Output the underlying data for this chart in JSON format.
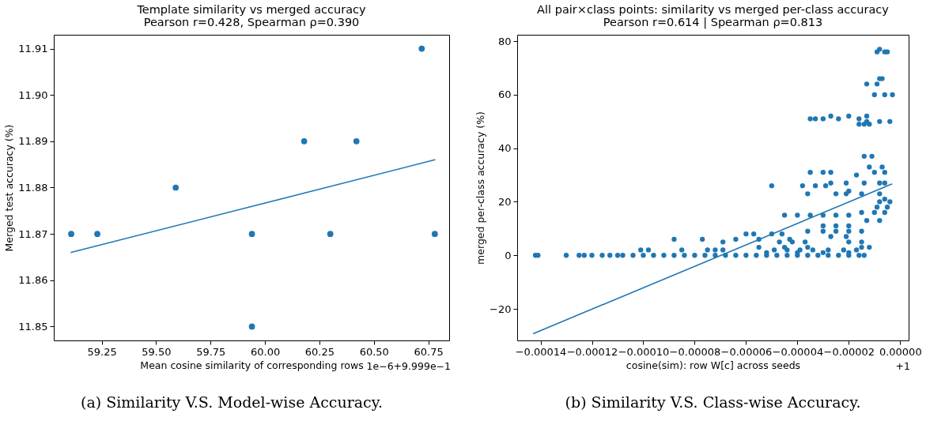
{
  "chart_data": [
    {
      "type": "scatter",
      "title": "Template similarity vs merged accuracy",
      "subtitle": "Pearson r=0.428, Spearman ρ=0.390",
      "xlabel": "Mean cosine similarity of corresponding rows",
      "ylabel": "Merged test accuracy (%)",
      "annotations": [
        "1e−6+9.999e−1",
        "(a) Similarity V.S. Model-wise Accuracy."
      ],
      "xlim": [
        59.03,
        60.846
      ],
      "ylim": [
        11.847,
        11.913
      ],
      "xticks": [
        59.25,
        {
          "value": 59.5,
          "label": "59.50"
        },
        59.75,
        {
          "value": 60,
          "label": "60.00"
        },
        60.25,
        {
          "value": 60.5,
          "label": "60.50"
        },
        60.75
      ],
      "yticks": [
        11.85,
        11.86,
        11.87,
        11.88,
        11.89,
        {
          "value": 11.9,
          "label": "11.90"
        },
        11.91
      ],
      "grid": false,
      "series": [
        {
          "type": "scatter",
          "marker": "circle",
          "color": "#1f77b4",
          "x": [
            59.11,
            59.23,
            59.59,
            59.94,
            59.94,
            60.18,
            60.3,
            60.42,
            60.72,
            60.78
          ],
          "values": [
            11.87,
            11.87,
            11.88,
            11.87,
            11.85,
            11.89,
            11.87,
            11.89,
            11.91,
            11.87
          ]
        },
        {
          "type": "line",
          "color": "#1f77b4",
          "x": [
            59.11,
            60.78
          ],
          "values": [
            11.866,
            11.886
          ]
        }
      ]
    },
    {
      "type": "scatter",
      "title": "All pair×class points: similarity vs merged per-class accuracy",
      "subtitle": "Pearson r=0.614 | Spearman ρ=0.813",
      "xlabel": "cosine(sim): row W[c] across seeds",
      "ylabel": "merged per-class accuracy (%)",
      "annotations": [
        "+1",
        "(b) Similarity V.S. Class-wise Accuracy."
      ],
      "xlim": [
        -0.0001491,
        3.3e-06
      ],
      "ylim": [
        -31.8,
        82.4
      ],
      "xticks": [
        {
          "value": -0.00014,
          "label": "−0.00014"
        },
        {
          "value": -0.00012,
          "label": "−0.00012"
        },
        {
          "value": -0.0001,
          "label": "−0.00010"
        },
        {
          "value": -8e-05,
          "label": "−0.00008"
        },
        {
          "value": -6e-05,
          "label": "−0.00006"
        },
        {
          "value": -4e-05,
          "label": "−0.00004"
        },
        {
          "value": -2e-05,
          "label": "−0.00002"
        },
        {
          "value": 0,
          "label": "0.00000"
        }
      ],
      "yticks": [
        {
          "value": -20,
          "label": "−20"
        },
        0,
        20,
        40,
        60,
        80
      ],
      "grid": false,
      "series": [
        {
          "type": "scatter",
          "marker": "circle",
          "color": "#1f77b4",
          "x": [
            -0.000142,
            -0.000141,
            -0.00013,
            -0.000125,
            -0.000123,
            -0.00012,
            -0.000116,
            -0.000113,
            -0.00011,
            -0.000108,
            -0.000104,
            -0.0001,
            -9.6e-05,
            -9.2e-05,
            -8.8e-05,
            -8.4e-05,
            -8e-05,
            -7.6e-05,
            -7.2e-05,
            -6.8e-05,
            -6.4e-05,
            -6e-05,
            -5.6e-05,
            -5.2e-05,
            -4.8e-05,
            -4.4e-05,
            -4e-05,
            -3.6e-05,
            -3.2e-05,
            -2.8e-05,
            -2.4e-05,
            -2e-05,
            -1.6e-05,
            -1.4e-05,
            -0.000101,
            -9.8e-05,
            -8.5e-05,
            -7.5e-05,
            -7.2e-05,
            -6.9e-05,
            -8.8e-05,
            -7.7e-05,
            -6.4e-05,
            -6e-05,
            -5.7e-05,
            -5e-05,
            -4.6e-05,
            -5e-05,
            -4.5e-05,
            -4e-05,
            -3.5e-05,
            -3e-05,
            -2.5e-05,
            -2e-05,
            -1.5e-05,
            -1e-05,
            -6e-06,
            -1.3e-05,
            -8e-06,
            -3.6e-05,
            -2.5e-05,
            -2.1e-05,
            -1.5e-05,
            -8e-06,
            -3.8e-05,
            -3.3e-05,
            -2.9e-05,
            -2.7e-05,
            -2.1e-05,
            -1.4e-05,
            -8e-06,
            -6e-06,
            -3.5e-05,
            -3e-05,
            -2.7e-05,
            -1e-05,
            -6e-06,
            -1.4e-05,
            -1.1e-05,
            -1.2e-05,
            -7e-06,
            -1.7e-05,
            -3.5e-05,
            -3.3e-05,
            -3e-05,
            -2.7e-05,
            -2.4e-05,
            -2e-05,
            -1.6e-05,
            -1.6e-05,
            -1.4e-05,
            -1.2e-05,
            -1.3e-05,
            -1.3e-05,
            -8e-06,
            -4e-06,
            -1.3e-05,
            -9e-06,
            -8e-06,
            -7e-06,
            -1e-05,
            -6e-06,
            -3e-06,
            -9e-06,
            -8e-06,
            -6e-06,
            -5e-06,
            -1.2e-05,
            -1.5e-05,
            -3.6e-05,
            -3e-05,
            -2.5e-05,
            -2e-05,
            -1.5e-05,
            -2.7e-05,
            -2.1e-05,
            -3e-05,
            -2.5e-05,
            -2e-05,
            -4.9e-05,
            -4.4e-05,
            -3.9e-05,
            -3.4e-05,
            -2.8e-05,
            -2.2e-05,
            -1.7e-05,
            -5.5e-05,
            -4.5e-05,
            -3.6e-05,
            -4.7e-05,
            -4.2e-05,
            -3.7e-05,
            -2e-05,
            -1.5e-05,
            -5.2e-05,
            -4e-05,
            -3e-05,
            -2e-05,
            -5.5e-05,
            -4.3e-05,
            -9e-06,
            -5e-06,
            -8e-06,
            -4e-06,
            -6e-06,
            -2e-05,
            -6.9e-05
          ],
          "values": [
            0,
            0,
            0,
            0,
            0,
            0,
            0,
            0,
            0,
            0,
            0,
            0,
            0,
            0,
            0,
            0,
            0,
            0,
            0,
            0,
            0,
            0,
            0,
            0,
            0,
            0,
            0,
            0,
            0,
            0,
            0,
            0,
            0,
            0,
            2,
            2,
            2,
            2,
            2,
            2,
            6,
            6,
            6,
            8,
            8,
            8,
            8,
            26,
            15,
            15,
            15,
            15,
            15,
            15,
            16,
            16,
            16,
            13,
            13,
            23,
            23,
            23,
            23,
            23,
            26,
            26,
            26,
            27,
            27,
            27,
            27,
            27,
            31,
            31,
            31,
            31,
            31,
            37,
            37,
            33,
            33,
            30,
            51,
            51,
            51,
            52,
            51,
            52,
            51,
            49,
            49,
            49,
            52,
            50,
            50,
            50,
            64,
            64,
            66,
            66,
            60,
            60,
            60,
            76,
            77,
            76,
            76,
            3,
            3,
            9,
            9,
            9,
            9,
            9,
            7,
            7,
            11,
            11,
            11,
            2,
            2,
            2,
            2,
            2,
            2,
            2,
            3,
            3,
            3,
            5,
            5,
            5,
            5,
            5,
            1,
            1,
            1,
            1,
            6,
            6,
            18,
            18,
            20,
            20,
            21,
            24,
            5
          ]
        },
        {
          "type": "line",
          "color": "#1f77b4",
          "x": [
            -0.0001427,
            -3.3e-06
          ],
          "values": [
            -29.2,
            26.6
          ]
        }
      ]
    }
  ]
}
